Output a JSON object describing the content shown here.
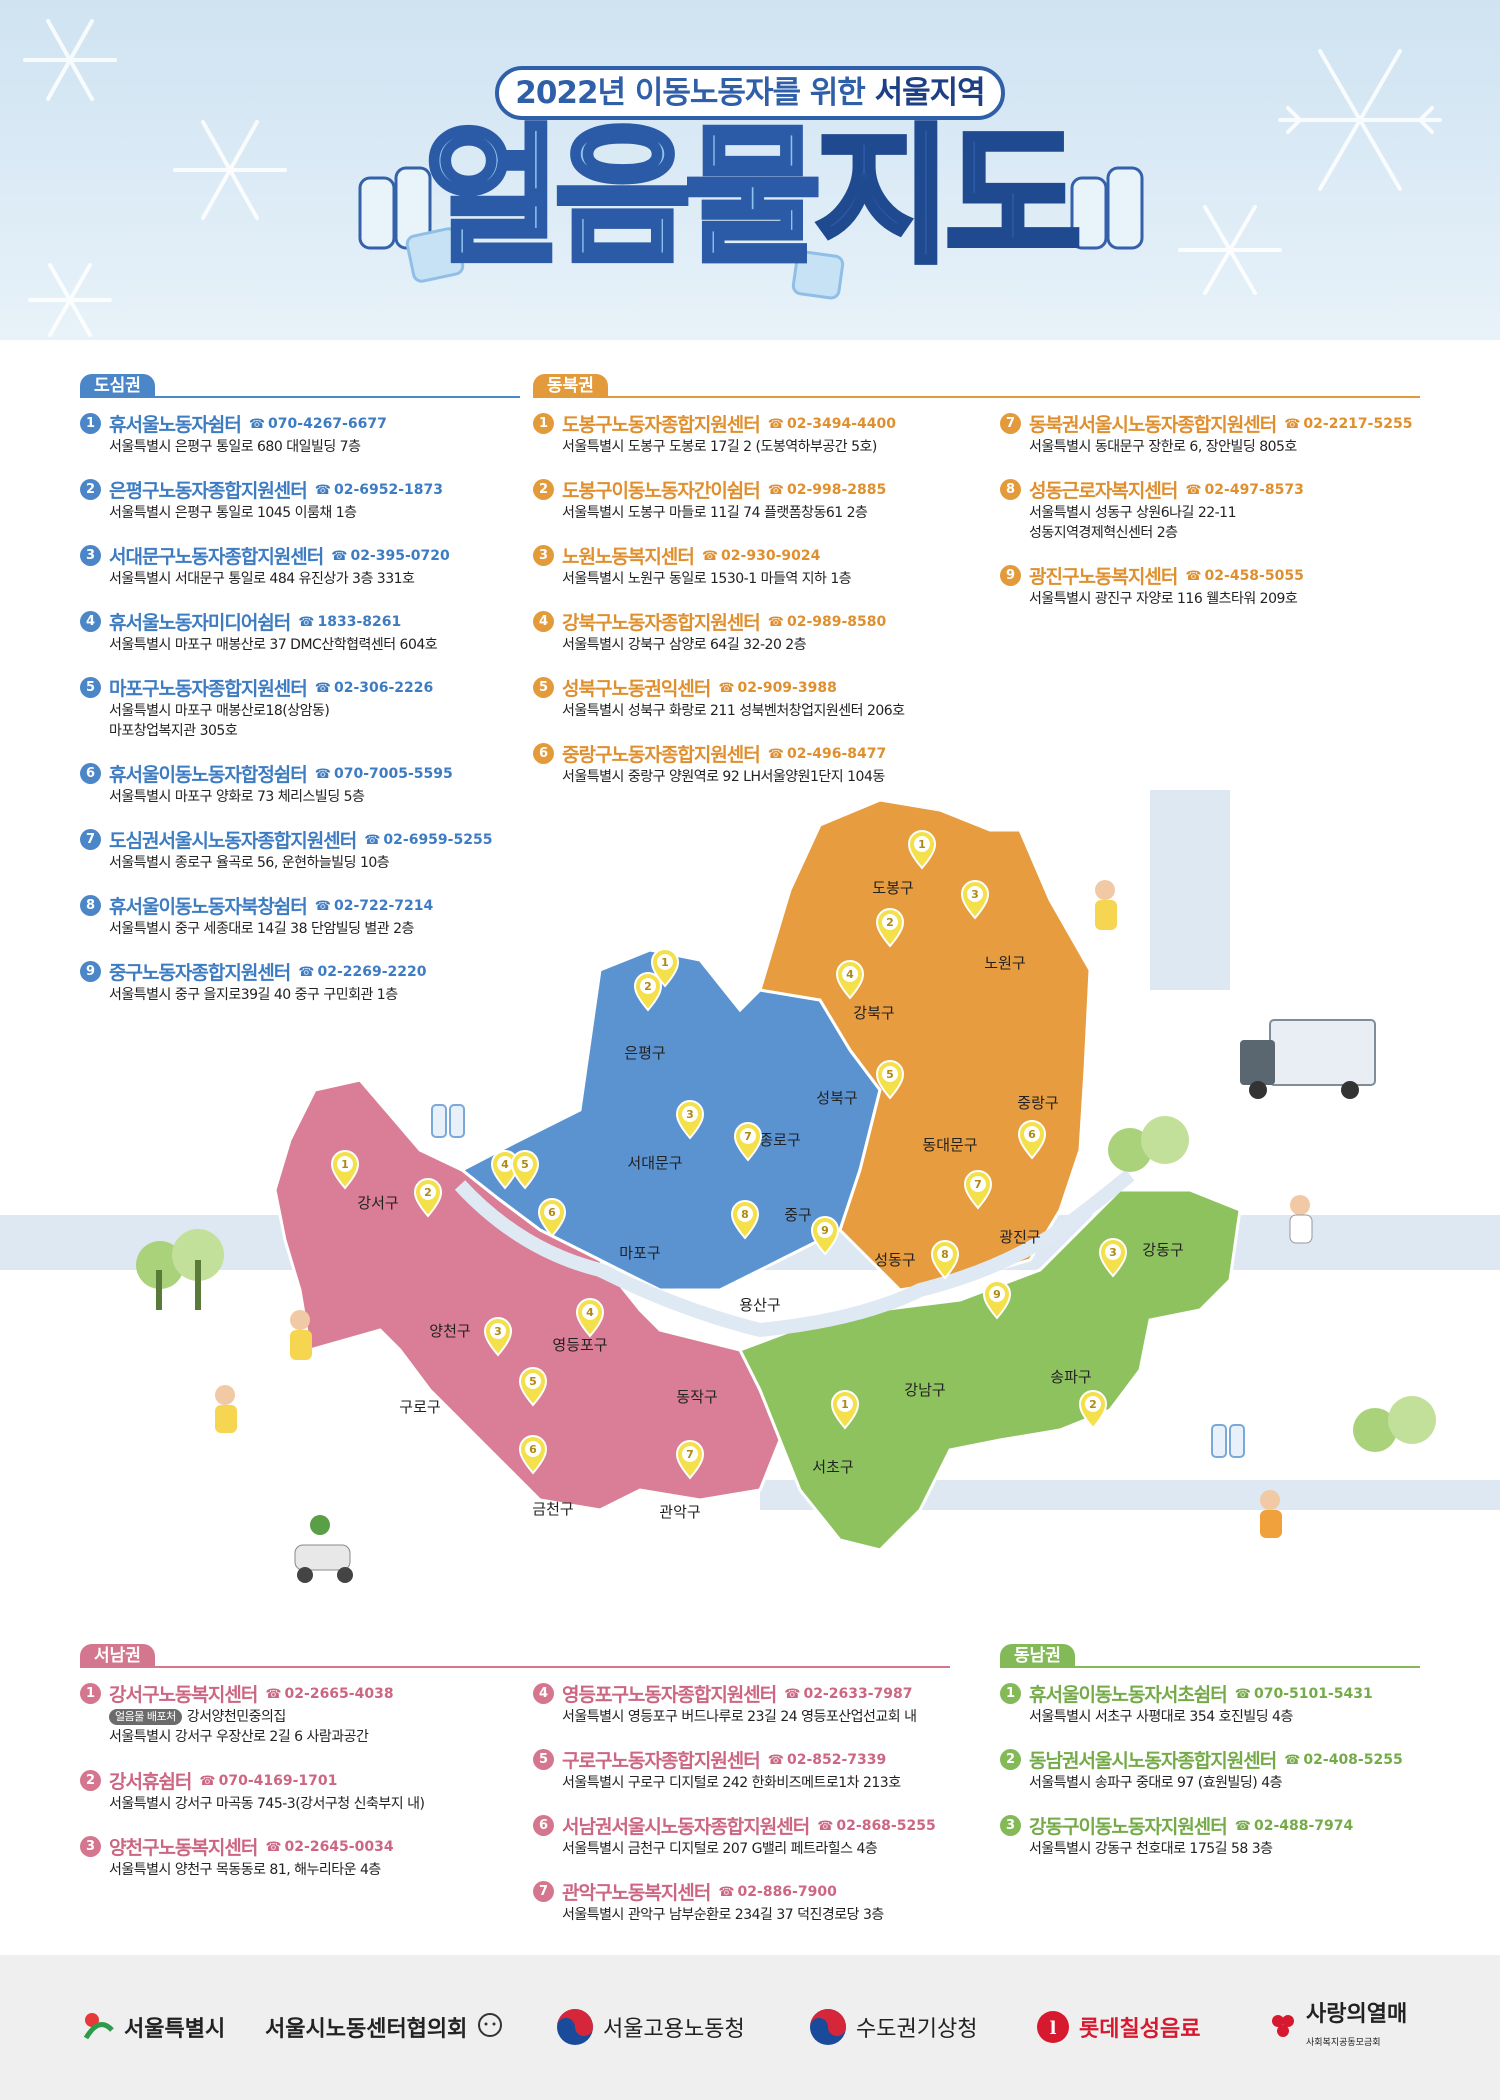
{
  "header": {
    "subtitle_pre": "2022년 이동노동자를 위한 ",
    "subtitle_bold": "서울지역",
    "title_light": "얼음물",
    "title_dark": "지도"
  },
  "regions": {
    "dosim": {
      "label": "도심권",
      "color": "#4a86c8",
      "items": [
        {
          "no": "1",
          "name": "휴서울노동자쉼터",
          "phone": "070-4267-6677",
          "addr": [
            "서울특별시 은평구 통일로 680 대일빌딩 7층"
          ]
        },
        {
          "no": "2",
          "name": "은평구노동자종합지원센터",
          "phone": "02-6952-1873",
          "addr": [
            "서울특별시 은평구 통일로 1045 이룸채 1층"
          ]
        },
        {
          "no": "3",
          "name": "서대문구노동자종합지원센터",
          "phone": "02-395-0720",
          "addr": [
            "서울특별시 서대문구 통일로 484 유진상가 3층 331호"
          ]
        },
        {
          "no": "4",
          "name": "휴서울노동자미디어쉼터",
          "phone": "1833-8261",
          "addr": [
            "서울특별시 마포구 매봉산로 37 DMC산학협력센터 604호"
          ]
        },
        {
          "no": "5",
          "name": "마포구노동자종합지원센터",
          "phone": "02-306-2226",
          "addr": [
            "서울특별시 마포구 매봉산로18(상암동)",
            "마포창업복지관 305호"
          ]
        },
        {
          "no": "6",
          "name": "휴서울이동노동자합정쉼터",
          "phone": "070-7005-5595",
          "addr": [
            "서울특별시 마포구 양화로 73 체리스빌딩 5층"
          ]
        },
        {
          "no": "7",
          "name": "도심권서울시노동자종합지원센터",
          "phone": "02-6959-5255",
          "addr": [
            "서울특별시 종로구 율곡로 56, 운현하늘빌딩 10층"
          ]
        },
        {
          "no": "8",
          "name": "휴서울이동노동자북창쉼터",
          "phone": "02-722-7214",
          "addr": [
            "서울특별시 중구 세종대로 14길 38 단암빌딩 별관 2층"
          ]
        },
        {
          "no": "9",
          "name": "중구노동자종합지원센터",
          "phone": "02-2269-2220",
          "addr": [
            "서울특별시 중구 을지로39길 40 중구 구민회관 1층"
          ]
        }
      ]
    },
    "dongbuk": {
      "label": "동북권",
      "color": "#e39a3b",
      "items": [
        {
          "no": "1",
          "name": "도봉구노동자종합지원센터",
          "phone": "02-3494-4400",
          "addr": [
            "서울특별시 도봉구 도봉로 17길 2 (도봉역하부공간 5호)"
          ]
        },
        {
          "no": "2",
          "name": "도봉구이동노동자간이쉼터",
          "phone": "02-998-2885",
          "addr": [
            "서울특별시 도봉구 마들로 11길 74 플랫폼창동61 2층"
          ]
        },
        {
          "no": "3",
          "name": "노원노동복지센터",
          "phone": "02-930-9024",
          "addr": [
            "서울특별시 노원구 동일로 1530-1 마들역 지하 1층"
          ]
        },
        {
          "no": "4",
          "name": "강북구노동자종합지원센터",
          "phone": "02-989-8580",
          "addr": [
            "서울특별시 강북구 삼양로 64길 32-20 2층"
          ]
        },
        {
          "no": "5",
          "name": "성북구노동권익센터",
          "phone": "02-909-3988",
          "addr": [
            "서울특별시 성북구 화랑로 211 성북벤처창업지원센터 206호"
          ]
        },
        {
          "no": "6",
          "name": "중랑구노동자종합지원센터",
          "phone": "02-496-8477",
          "addr": [
            "서울특별시 중랑구 양원역로 92 LH서울양원1단지 104동"
          ]
        },
        {
          "no": "7",
          "name": "동북권서울시노동자종합지원센터",
          "phone": "02-2217-5255",
          "addr": [
            "서울특별시 동대문구 장한로 6, 장안빌딩 805호"
          ]
        },
        {
          "no": "8",
          "name": "성동근로자복지센터",
          "phone": "02-497-8573",
          "addr": [
            "서울특별시 성동구 상원6나길 22-11",
            "성동지역경제혁신센터 2층"
          ]
        },
        {
          "no": "9",
          "name": "광진구노동복지센터",
          "phone": "02-458-5055",
          "addr": [
            "서울특별시 광진구 자양로 116 웰츠타워 209호"
          ]
        }
      ]
    },
    "seonam": {
      "label": "서남권",
      "color": "#d4768e",
      "badge": "얼음물 배포처",
      "items": [
        {
          "no": "1",
          "name": "강서구노동복지센터",
          "phone": "02-2665-4038",
          "badge_text": "강서양천민중의집",
          "addr": [
            "서울특별시 강서구 우장산로 2길 6 사람과공간"
          ]
        },
        {
          "no": "2",
          "name": "강서휴쉼터",
          "phone": "070-4169-1701",
          "addr": [
            "서울특별시 강서구 마곡동 745-3(강서구청 신축부지 내)"
          ]
        },
        {
          "no": "3",
          "name": "양천구노동복지센터",
          "phone": "02-2645-0034",
          "addr": [
            "서울특별시 양천구 목동동로 81, 해누리타운 4층"
          ]
        },
        {
          "no": "4",
          "name": "영등포구노동자종합지원센터",
          "phone": "02-2633-7987",
          "addr": [
            "서울특별시 영등포구 버드나루로 23길 24 영등포산업선교회 내"
          ]
        },
        {
          "no": "5",
          "name": "구로구노동자종합지원센터",
          "phone": "02-852-7339",
          "addr": [
            "서울특별시 구로구 디지털로 242 한화비즈메트로1차 213호"
          ]
        },
        {
          "no": "6",
          "name": "서남권서울시노동자종합지원센터",
          "phone": "02-868-5255",
          "addr": [
            "서울특별시 금천구 디지털로 207 G밸리 페트라힐스 4층"
          ]
        },
        {
          "no": "7",
          "name": "관악구노동복지센터",
          "phone": "02-886-7900",
          "addr": [
            "서울특별시 관악구 남부순환로 234길 37 덕진경로당 3층"
          ]
        }
      ]
    },
    "dongnam": {
      "label": "동남권",
      "color": "#84b958",
      "items": [
        {
          "no": "1",
          "name": "휴서울이동노동자서초쉼터",
          "phone": "070-5101-5431",
          "addr": [
            "서울특별시 서초구 사평대로 354 호진빌딩 4층"
          ]
        },
        {
          "no": "2",
          "name": "동남권서울시노동자종합지원센터",
          "phone": "02-408-5255",
          "addr": [
            "서울특별시 송파구 중대로 97 (효원빌딩) 4층"
          ]
        },
        {
          "no": "3",
          "name": "강동구이동노동자지원센터",
          "phone": "02-488-7974",
          "addr": [
            "서울특별시 강동구 천호대로 175길 58 3층"
          ]
        }
      ]
    }
  },
  "map": {
    "districts": [
      "도봉구",
      "노원구",
      "강북구",
      "성북구",
      "중랑구",
      "동대문구",
      "광진구",
      "성동구",
      "은평구",
      "서대문구",
      "종로구",
      "중구",
      "마포구",
      "용산구",
      "강서구",
      "양천구",
      "영등포구",
      "구로구",
      "동작구",
      "금천구",
      "관악구",
      "서초구",
      "강남구",
      "송파구",
      "강동구"
    ],
    "pins": [
      "1",
      "2",
      "3",
      "4",
      "5",
      "6",
      "7",
      "8",
      "9"
    ]
  },
  "footer": {
    "logos": [
      "서울특별시",
      "서울시노동센터협의회",
      "서울고용노동청",
      "수도권기상청",
      "롯데칠성음료",
      "사랑의열매"
    ],
    "sarang_sub": "사회복지공동모금회"
  },
  "colors": {
    "blue": "#4a86c8",
    "orange": "#e39a3b",
    "pink": "#d4768e",
    "green": "#84b958",
    "river": "#dfe9f3",
    "road": "#dde8f3"
  }
}
